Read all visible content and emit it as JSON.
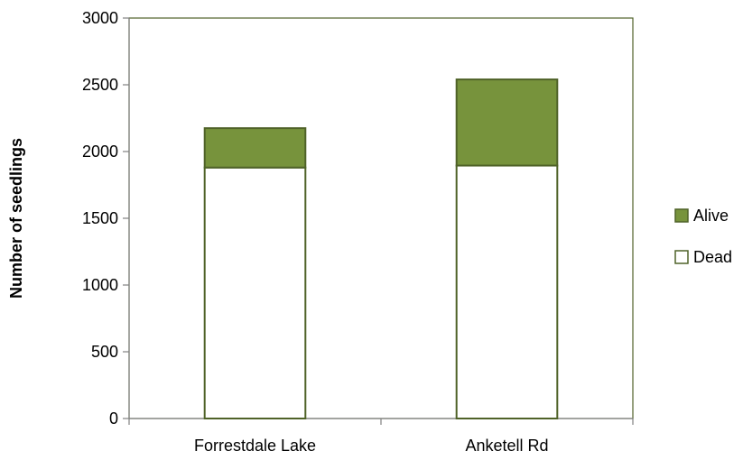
{
  "chart_data": {
    "type": "bar",
    "stacked": true,
    "categories": [
      "Forrestdale Lake",
      "Anketell Rd"
    ],
    "series": [
      {
        "name": "Dead",
        "values": [
          1880,
          1895
        ],
        "color": "#ffffff",
        "stroke": "#4f6228"
      },
      {
        "name": "Alive",
        "values": [
          295,
          645
        ],
        "color": "#77933c",
        "stroke": "#4f6228"
      }
    ],
    "ylabel": "Number of seedlings",
    "xlabel": "",
    "ylim": [
      0,
      3000
    ],
    "yticks": [
      0,
      500,
      1000,
      1500,
      2000,
      2500,
      3000
    ],
    "grid": false,
    "legend_position": "right",
    "legend_order": [
      "Alive",
      "Dead"
    ],
    "axis_color": "#808080",
    "frame_color": "#4f6228"
  }
}
